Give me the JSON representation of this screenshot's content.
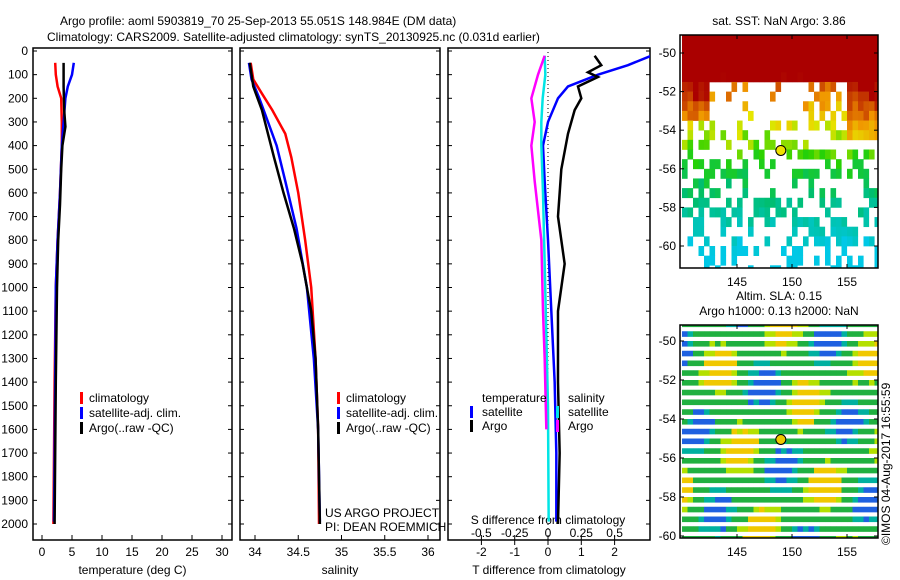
{
  "title": {
    "line1": "Argo profile: aoml 5903819_70 25-Sep-2013 55.051S 148.984E (DM data)",
    "line2": "Climatology: CARS2009. Satellite-adjusted climatology: synTS_20130925.nc (0.031d earlier)"
  },
  "colors": {
    "climatology": "#ff0000",
    "satellite": "#0000ff",
    "argo": "#000000",
    "s_satellite": "#00e5e5",
    "s_argo": "#ff00ff"
  },
  "chart_data": [
    {
      "type": "line",
      "name": "temperature",
      "xlabel": "temperature (deg C)",
      "xlim": [
        -1.5,
        31.5
      ],
      "ylim": [
        2050,
        0
      ],
      "xticks": [
        "0",
        "5",
        "10",
        "15",
        "20",
        "25",
        "30"
      ],
      "yticks": [
        "0",
        "100",
        "200",
        "300",
        "400",
        "500",
        "600",
        "700",
        "800",
        "900",
        "1000",
        "1100",
        "1200",
        "1300",
        "1400",
        "1500",
        "1600",
        "1700",
        "1800",
        "1900",
        "2000"
      ],
      "legend": [
        "climatology",
        "satellite-adj. clim.",
        "Argo(..raw -QC)"
      ],
      "series": [
        {
          "name": "climatology",
          "color": "#ff0000",
          "points": [
            [
              2.2,
              50
            ],
            [
              2.3,
              100
            ],
            [
              2.6,
              150
            ],
            [
              3.2,
              200
            ],
            [
              3.3,
              300
            ],
            [
              3.3,
              400
            ],
            [
              3.0,
              600
            ],
            [
              2.6,
              800
            ],
            [
              2.3,
              1000
            ],
            [
              2.1,
              1400
            ],
            [
              2.0,
              1700
            ],
            [
              1.9,
              2000
            ]
          ]
        },
        {
          "name": "satellite-adj. clim.",
          "color": "#0000ff",
          "points": [
            [
              5.3,
              50
            ],
            [
              5.0,
              100
            ],
            [
              4.3,
              150
            ],
            [
              3.9,
              200
            ],
            [
              3.6,
              300
            ],
            [
              3.3,
              400
            ],
            [
              3.0,
              600
            ],
            [
              2.6,
              800
            ],
            [
              2.3,
              1000
            ],
            [
              2.2,
              1400
            ],
            [
              2.1,
              1700
            ],
            [
              2.0,
              1990
            ]
          ]
        },
        {
          "name": "Argo(..raw -QC)",
          "color": "#000000",
          "points": [
            [
              3.6,
              50
            ],
            [
              3.6,
              150
            ],
            [
              3.7,
              250
            ],
            [
              3.9,
              320
            ],
            [
              3.4,
              400
            ],
            [
              3.2,
              500
            ],
            [
              3.0,
              650
            ],
            [
              2.7,
              800
            ],
            [
              2.5,
              1000
            ],
            [
              2.3,
              1400
            ],
            [
              2.2,
              1700
            ],
            [
              2.1,
              2000
            ]
          ]
        }
      ]
    },
    {
      "type": "line",
      "name": "salinity",
      "xlabel": "salinity",
      "xlim": [
        33.91,
        36.07
      ],
      "ylim": [
        2050,
        0
      ],
      "xticks": [
        "34",
        "34.5",
        "35",
        "35.5",
        "36"
      ],
      "legend": [
        "climatology",
        "satellite-adj. clim.",
        "Argo(..raw -QC)"
      ],
      "annotation": [
        "US ARGO PROJECT",
        "PI: DEAN ROEMMICH"
      ],
      "series": [
        {
          "name": "climatology",
          "color": "#ff0000",
          "points": [
            [
              33.95,
              50
            ],
            [
              33.98,
              120
            ],
            [
              34.08,
              180
            ],
            [
              34.2,
              250
            ],
            [
              34.35,
              350
            ],
            [
              34.42,
              450
            ],
            [
              34.5,
              600
            ],
            [
              34.58,
              800
            ],
            [
              34.65,
              1000
            ],
            [
              34.7,
              1300
            ],
            [
              34.73,
              1600
            ],
            [
              34.74,
              2000
            ]
          ]
        },
        {
          "name": "satellite-adj. clim.",
          "color": "#0000ff",
          "points": [
            [
              33.93,
              50
            ],
            [
              33.96,
              120
            ],
            [
              34.05,
              200
            ],
            [
              34.15,
              300
            ],
            [
              34.25,
              400
            ],
            [
              34.35,
              550
            ],
            [
              34.48,
              750
            ],
            [
              34.6,
              1000
            ],
            [
              34.68,
              1300
            ],
            [
              34.73,
              1600
            ],
            [
              34.75,
              1990
            ]
          ]
        },
        {
          "name": "Argo(..raw -QC)",
          "color": "#000000",
          "points": [
            [
              33.94,
              50
            ],
            [
              33.98,
              150
            ],
            [
              34.08,
              250
            ],
            [
              34.15,
              350
            ],
            [
              34.22,
              450
            ],
            [
              34.33,
              600
            ],
            [
              34.45,
              750
            ],
            [
              34.55,
              900
            ],
            [
              34.65,
              1100
            ],
            [
              34.7,
              1300
            ],
            [
              34.73,
              1600
            ],
            [
              34.75,
              2000
            ]
          ]
        }
      ]
    },
    {
      "type": "line",
      "name": "difference",
      "xlabel": "T difference from climatology",
      "xlabel2": "S difference from climatology",
      "xlim": [
        -3,
        3.1
      ],
      "ylim": [
        2050,
        0
      ],
      "xticks": [
        "-2",
        "-1",
        "0",
        "1",
        "2"
      ],
      "xticks2": [
        "-0.5",
        "-0.25",
        "0",
        "0.25",
        "0.5"
      ],
      "legend_t": {
        "heading": "temperature",
        "items": [
          "satellite",
          "Argo"
        ]
      },
      "legend_s": {
        "heading": "salinity",
        "items": [
          "satellite",
          "Argo"
        ]
      },
      "series": [
        {
          "name": "T satellite",
          "color": "#0000ff",
          "points": [
            [
              3.1,
              20
            ],
            [
              2.4,
              60
            ],
            [
              1.5,
              100
            ],
            [
              0.6,
              150
            ],
            [
              0.3,
              200
            ],
            [
              0.0,
              300
            ],
            [
              -0.15,
              400
            ],
            [
              -0.1,
              550
            ],
            [
              0,
              800
            ],
            [
              0.1,
              1100
            ],
            [
              0.2,
              1400
            ],
            [
              0.25,
              1700
            ],
            [
              0.25,
              1990
            ]
          ]
        },
        {
          "name": "T Argo",
          "color": "#000000",
          "points": [
            [
              1.4,
              20
            ],
            [
              1.6,
              60
            ],
            [
              1.2,
              90
            ],
            [
              1.5,
              110
            ],
            [
              0.9,
              150
            ],
            [
              1.0,
              200
            ],
            [
              0.8,
              250
            ],
            [
              0.6,
              350
            ],
            [
              0.4,
              500
            ],
            [
              0.3,
              700
            ],
            [
              0.5,
              900
            ],
            [
              0.3,
              1100
            ],
            [
              0.3,
              1400
            ],
            [
              0.35,
              1700
            ],
            [
              0.3,
              2000
            ]
          ]
        },
        {
          "name": "S satellite",
          "color": "#00e5e5",
          "points": [
            [
              -0.1,
              20
            ],
            [
              -0.08,
              100
            ],
            [
              -0.16,
              200
            ],
            [
              -0.2,
              300
            ],
            [
              -0.2,
              400
            ],
            [
              -0.15,
              600
            ],
            [
              -0.1,
              900
            ],
            [
              -0.05,
              1200
            ],
            [
              0,
              1500
            ],
            [
              0.02,
              1990
            ]
          ]
        },
        {
          "name": "S Argo",
          "color": "#ff00ff",
          "points": [
            [
              -0.1,
              20
            ],
            [
              -0.3,
              100
            ],
            [
              -0.5,
              200
            ],
            [
              -0.4,
              300
            ],
            [
              -0.5,
              400
            ],
            [
              -0.4,
              550
            ],
            [
              -0.2,
              800
            ],
            [
              -0.15,
              1100
            ],
            [
              -0.1,
              1300
            ],
            [
              -0.05,
              1600
            ]
          ]
        }
      ]
    }
  ],
  "maps": [
    {
      "title": "sat. SST: NaN Argo: 3.86",
      "xticks": [
        "145",
        "150",
        "155"
      ],
      "yticks": [
        "-50",
        "-52",
        "-54",
        "-56",
        "-58",
        "-60"
      ],
      "marker": {
        "lon": 148.984,
        "lat": -55.051
      }
    },
    {
      "title1": "Altim. SLA: 0.15",
      "title2": "Argo h1000: 0.13 h2000: NaN",
      "xticks": [
        "145",
        "150",
        "155"
      ],
      "yticks": [
        "-50",
        "-52",
        "-54",
        "-56",
        "-58",
        "-60"
      ],
      "marker": {
        "lon": 148.984,
        "lat": -55.051
      }
    }
  ],
  "credit": "©IMOS 04-Aug-2017 16:55:59"
}
